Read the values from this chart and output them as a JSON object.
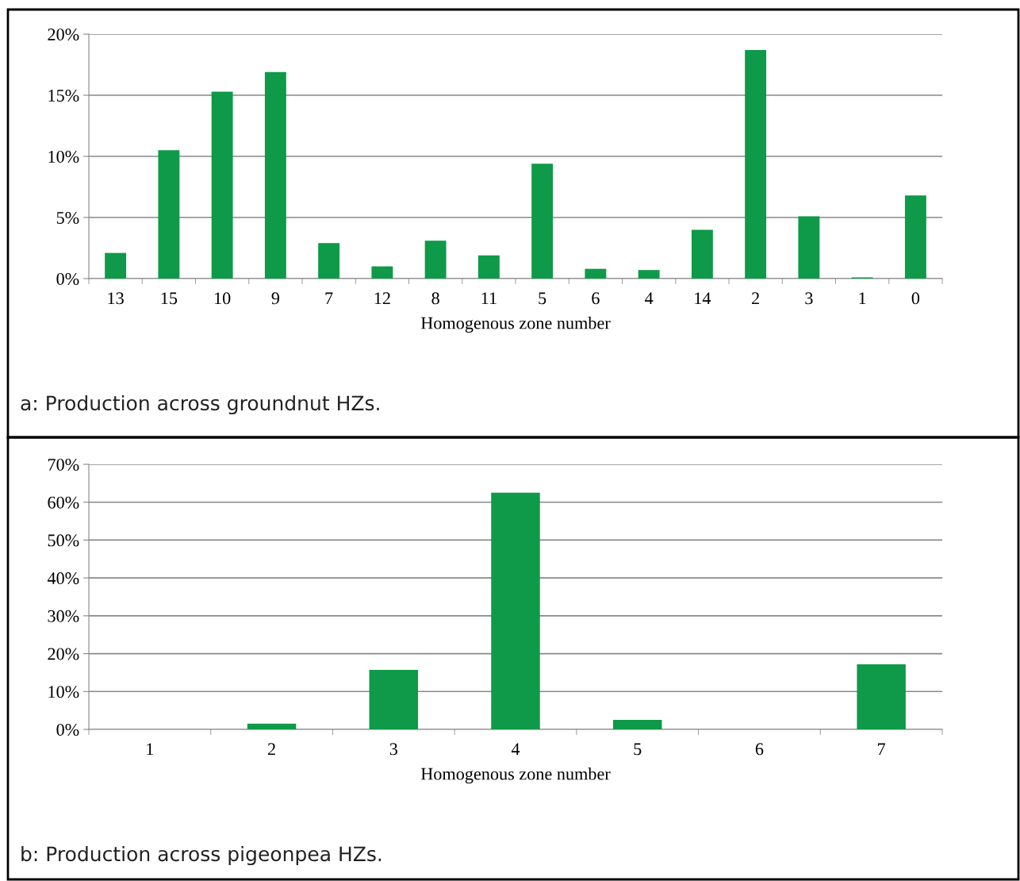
{
  "chart_data": [
    {
      "type": "bar",
      "categories": [
        "13",
        "15",
        "10",
        "9",
        "7",
        "12",
        "8",
        "11",
        "5",
        "6",
        "4",
        "14",
        "2",
        "3",
        "1",
        "0"
      ],
      "values": [
        2.1,
        10.5,
        15.3,
        16.9,
        2.9,
        1.0,
        3.1,
        1.9,
        9.4,
        0.8,
        0.7,
        4.0,
        18.7,
        5.1,
        0.1,
        6.8
      ],
      "color": "#0e9a48",
      "xlabel": "Homogenous zone number",
      "ylim": [
        0,
        20
      ],
      "yticks": [
        {
          "value": 0,
          "label": "0%"
        },
        {
          "value": 5,
          "label": "5%"
        },
        {
          "value": 10,
          "label": "10%"
        },
        {
          "value": 15,
          "label": "15%"
        },
        {
          "value": 20,
          "label": "20%"
        }
      ],
      "grid": "y",
      "annotations": [
        "a: Production across groundnut HZs."
      ]
    },
    {
      "type": "bar",
      "categories": [
        "1",
        "2",
        "3",
        "4",
        "5",
        "6",
        "7"
      ],
      "values": [
        0,
        1.5,
        15.7,
        62.5,
        2.5,
        0,
        17.2
      ],
      "color": "#0e9a48",
      "xlabel": "Homogenous zone number",
      "ylim": [
        0,
        70
      ],
      "yticks": [
        {
          "value": 0,
          "label": "0%"
        },
        {
          "value": 10,
          "label": "10%"
        },
        {
          "value": 20,
          "label": "20%"
        },
        {
          "value": 30,
          "label": "30%"
        },
        {
          "value": 40,
          "label": "40%"
        },
        {
          "value": 50,
          "label": "50%"
        },
        {
          "value": 60,
          "label": "60%"
        },
        {
          "value": 70,
          "label": "70%"
        }
      ],
      "grid": "y",
      "annotations": [
        "b: Production across pigeonpea HZs."
      ]
    }
  ]
}
